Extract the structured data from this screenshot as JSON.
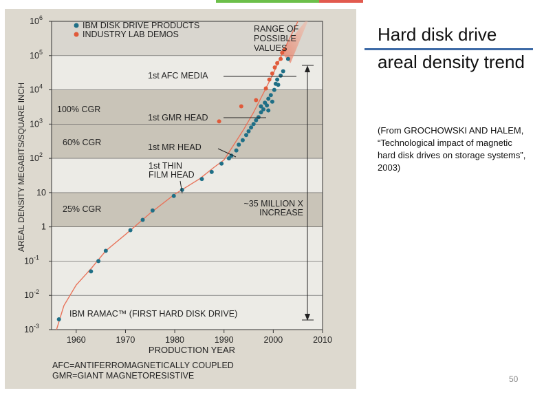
{
  "slide": {
    "title": "Hard disk drive areal density trend",
    "citation": "(From GROCHOWSKI AND HALEM, “Technological impact of magnetic hard disk drives on storage systems”, 2003)",
    "page_number": "50"
  },
  "colors": {
    "ibm_dot": "#1f6f86",
    "lab_dot": "#e05a3a",
    "trend_line": "#e8735a",
    "band_dark": "#c9c4b8",
    "band_light": "#ecebe6",
    "panel_bg": "#ddd9cf",
    "accent_rule": "#3d6aa6"
  },
  "chart_data": {
    "type": "scatter",
    "title": "",
    "xlabel": "PRODUCTION YEAR",
    "ylabel": "AREAL DENSITY MEGABITS/SQUARE INCH",
    "xlim": [
      1955,
      2010
    ],
    "ylim": [
      0.001,
      1000000
    ],
    "y_scale": "log",
    "x_ticks": [
      1960,
      1970,
      1980,
      1990,
      2000,
      2010
    ],
    "x_tick_labels": [
      "1960",
      "1970",
      "1980",
      "1990",
      "2000",
      "2010"
    ],
    "y_ticks": [
      0.001,
      0.01,
      0.1,
      1,
      10,
      100,
      1000,
      10000,
      100000,
      1000000
    ],
    "y_tick_labels": [
      {
        "base": "10",
        "exp": "-3"
      },
      {
        "base": "10",
        "exp": "-2"
      },
      {
        "base": "10",
        "exp": "-1"
      },
      {
        "base": "1",
        "exp": ""
      },
      {
        "base": "10",
        "exp": ""
      },
      {
        "base": "10",
        "exp": "2"
      },
      {
        "base": "10",
        "exp": "3"
      },
      {
        "base": "10",
        "exp": "4"
      },
      {
        "base": "10",
        "exp": "5"
      },
      {
        "base": "10",
        "exp": "6"
      }
    ],
    "legend": {
      "placement": "top-left",
      "items": [
        "IBM DISK DRIVE PRODUCTS",
        "INDUSTRY LAB DEMOS"
      ]
    },
    "series": [
      {
        "name": "IBM DISK DRIVE PRODUCTS",
        "points": [
          [
            1956.5,
            0.002
          ],
          [
            1963,
            0.05
          ],
          [
            1964.5,
            0.1
          ],
          [
            1966,
            0.2
          ],
          [
            1971,
            0.8
          ],
          [
            1973.5,
            1.6
          ],
          [
            1975.5,
            3
          ],
          [
            1979.8,
            8
          ],
          [
            1981.5,
            12
          ],
          [
            1985.5,
            25
          ],
          [
            1987.5,
            40
          ],
          [
            1989.5,
            70
          ],
          [
            1991,
            100
          ],
          [
            1991.5,
            120
          ],
          [
            1992.5,
            170
          ],
          [
            1993,
            250
          ],
          [
            1993.8,
            340
          ],
          [
            1994.5,
            480
          ],
          [
            1995,
            620
          ],
          [
            1995.5,
            800
          ],
          [
            1996,
            1000
          ],
          [
            1996.5,
            1300
          ],
          [
            1997,
            1600
          ],
          [
            1997.5,
            2200
          ],
          [
            1997.5,
            3300
          ],
          [
            1998,
            2700
          ],
          [
            1998.3,
            4200
          ],
          [
            1998.7,
            3500
          ],
          [
            1999,
            5500
          ],
          [
            1999,
            2500
          ],
          [
            1999.5,
            7000
          ],
          [
            1999.8,
            4500
          ],
          [
            2000.2,
            10000
          ],
          [
            2000.5,
            15000
          ],
          [
            2000.8,
            20000
          ],
          [
            2001,
            14000
          ],
          [
            2001.5,
            26000
          ],
          [
            2002,
            35000
          ],
          [
            2003,
            80000
          ]
        ]
      },
      {
        "name": "INDUSTRY LAB DEMOS",
        "points": [
          [
            1989,
            1200
          ],
          [
            1993.5,
            3300
          ],
          [
            1996.5,
            5000
          ],
          [
            1998.5,
            11000
          ],
          [
            1999.2,
            20000
          ],
          [
            1999.8,
            30000
          ],
          [
            2000.3,
            45000
          ],
          [
            2000.8,
            60000
          ],
          [
            2001.5,
            80000
          ],
          [
            2001.8,
            120000
          ],
          [
            2002.3,
            150000
          ]
        ]
      }
    ],
    "trend_line": [
      [
        1956,
        0.001
      ],
      [
        1957.5,
        0.005
      ],
      [
        1960,
        0.02
      ],
      [
        1963,
        0.06
      ],
      [
        1966,
        0.2
      ],
      [
        1970,
        0.6
      ],
      [
        1975,
        2.5
      ],
      [
        1980,
        9
      ],
      [
        1985,
        25
      ],
      [
        1988,
        55
      ],
      [
        1990,
        90
      ],
      [
        1992,
        250
      ],
      [
        1994,
        700
      ],
      [
        1996,
        2200
      ],
      [
        1998,
        8000
      ],
      [
        2000,
        30000
      ],
      [
        2002,
        130000
      ],
      [
        2005,
        1000000
      ]
    ],
    "bands": [
      {
        "label": "100% CGR",
        "from": 1000,
        "to": 10000
      },
      {
        "label": "60% CGR",
        "from": 100,
        "to": 1000
      },
      {
        "label": "25% CGR",
        "from": 1,
        "to": 10
      }
    ],
    "annotations": [
      {
        "text": "RANGE OF POSSIBLE VALUES",
        "x": 1998.5,
        "y": 630000
      },
      {
        "text": "1st AFC MEDIA",
        "x": 1987,
        "y": 25000
      },
      {
        "text": "1st GMR HEAD",
        "x": 1987,
        "y": 1300
      },
      {
        "text": "1st MR HEAD",
        "x": 1987,
        "y": 150
      },
      {
        "text": "1st THIN FILM HEAD",
        "x": 1980,
        "y": 35
      },
      {
        "text": "~35 MILLION X INCREASE",
        "x": 1997,
        "y": 5
      },
      {
        "text": "IBM RAMAC™ (FIRST HARD DISK DRIVE)",
        "x": 1976,
        "y": 0.0025
      }
    ],
    "footnotes": [
      "AFC=ANTIFERROMAGNETICALLY COUPLED",
      "GMR=GIANT MAGNETORESISTIVE"
    ]
  }
}
